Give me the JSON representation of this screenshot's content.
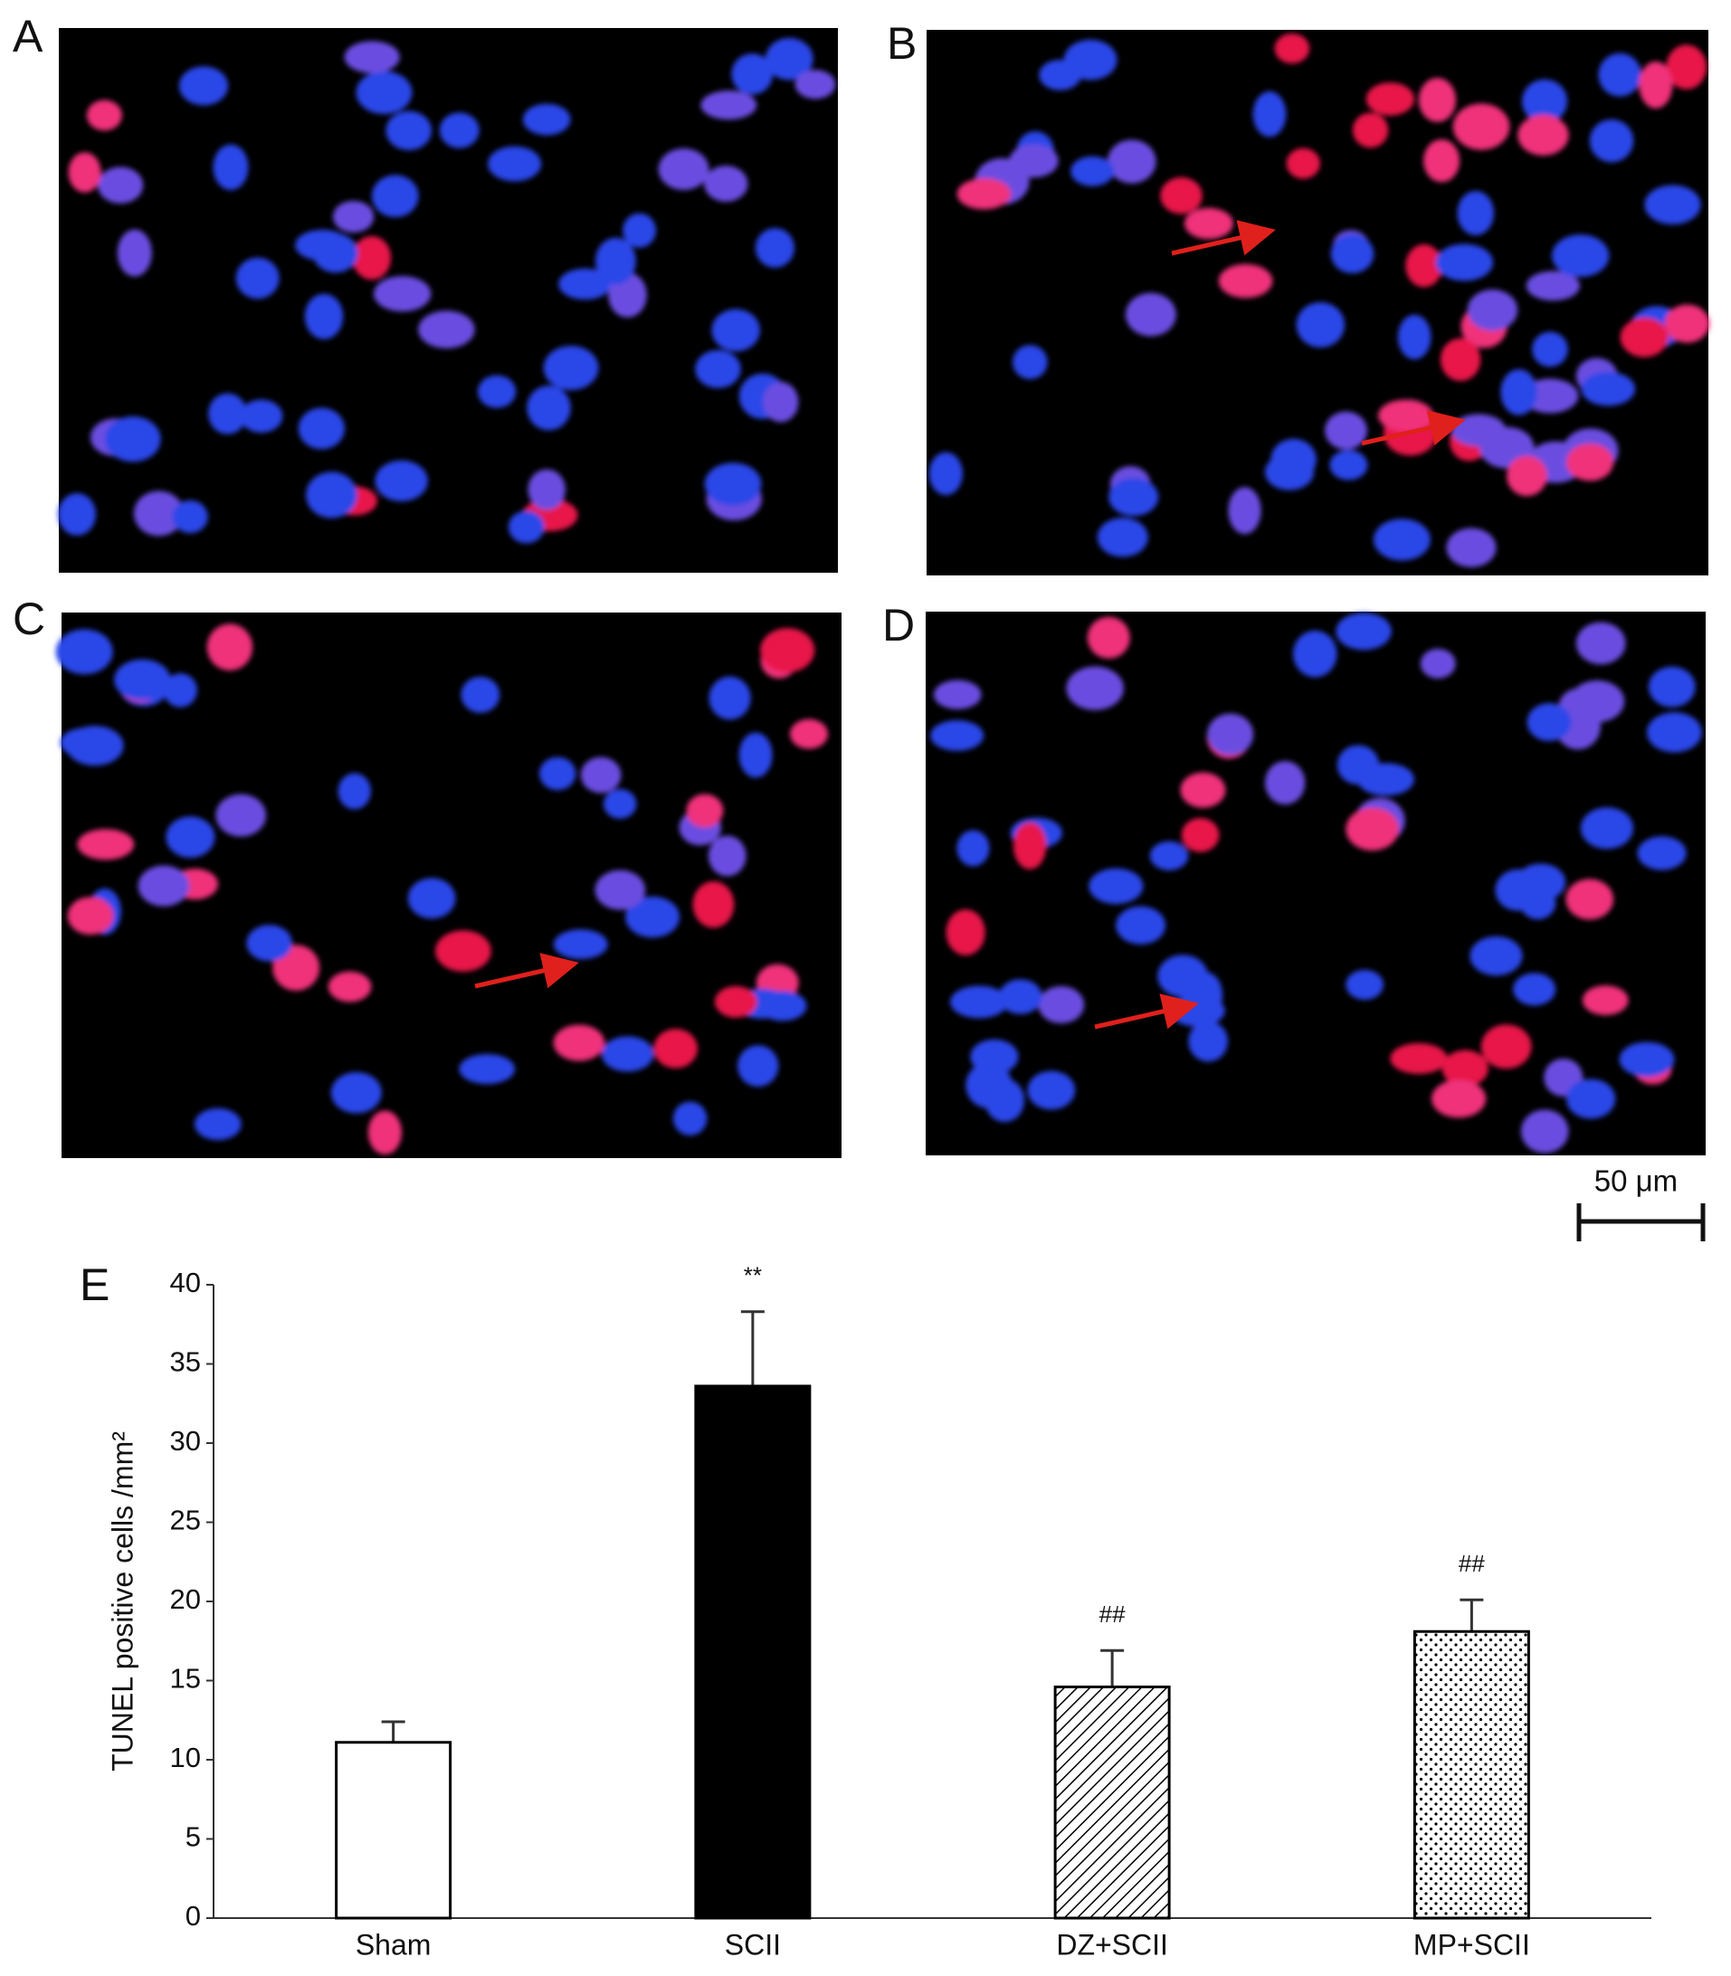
{
  "panels": [
    {
      "label": "A"
    },
    {
      "label": "B"
    },
    {
      "label": "C"
    },
    {
      "label": "D"
    }
  ],
  "scale_bar": "50 μm",
  "chart_data": {
    "type": "bar",
    "panel_label": "E",
    "y_label": "TUNEL positive cells /mm²",
    "categories": [
      "Sham",
      "SCII",
      "DZ+SCII",
      "MP+SCII"
    ],
    "values": [
      11.1,
      33.6,
      14.6,
      18.1
    ],
    "errors": [
      1.3,
      4.7,
      2.3,
      2.0
    ],
    "annotations": [
      null,
      "**",
      "##",
      "##"
    ],
    "patterns": [
      "none",
      "solid",
      "diagonal",
      "dots"
    ],
    "ylim": [
      0,
      40
    ],
    "yticks": [
      0,
      5,
      10,
      15,
      20,
      25,
      30,
      35,
      40
    ],
    "grid": false
  }
}
